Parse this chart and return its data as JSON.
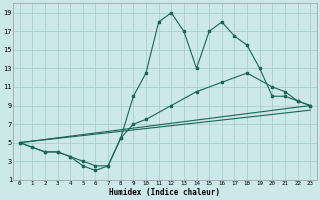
{
  "title": "",
  "xlabel": "Humidex (Indice chaleur)",
  "ylabel": "",
  "bg_color": "#cce8e8",
  "line_color": "#1a6655",
  "grid_color": "#aacece",
  "xlim": [
    -0.5,
    23.5
  ],
  "ylim": [
    1,
    20
  ],
  "xticks": [
    0,
    1,
    2,
    3,
    4,
    5,
    6,
    7,
    8,
    9,
    10,
    11,
    12,
    13,
    14,
    15,
    16,
    17,
    18,
    19,
    20,
    21,
    22,
    23
  ],
  "yticks": [
    1,
    3,
    5,
    7,
    9,
    11,
    13,
    15,
    17,
    19
  ],
  "series": [
    {
      "x": [
        0,
        1,
        2,
        3,
        4,
        5,
        6,
        7,
        8,
        9,
        10,
        11,
        12,
        13,
        14,
        15,
        16,
        17,
        18,
        19,
        20,
        21,
        22,
        23
      ],
      "y": [
        5,
        4.5,
        4,
        4,
        3.5,
        2.5,
        2,
        2.5,
        5.5,
        10,
        12.5,
        18,
        19,
        17,
        13,
        17,
        18,
        16.5,
        15.5,
        13,
        10,
        10,
        9.5,
        9
      ],
      "markers": true
    },
    {
      "x": [
        0,
        2,
        3,
        4,
        5,
        6,
        7,
        8,
        9,
        10,
        12,
        14,
        16,
        18,
        20,
        21,
        22,
        23
      ],
      "y": [
        5,
        4,
        4,
        3.5,
        3,
        2.5,
        2.5,
        5.5,
        7,
        7.5,
        9,
        10.5,
        11.5,
        12.5,
        11,
        10.5,
        9.5,
        9
      ],
      "markers": true
    },
    {
      "x": [
        0,
        23
      ],
      "y": [
        5,
        9
      ],
      "markers": false
    },
    {
      "x": [
        0,
        23
      ],
      "y": [
        5,
        8.5
      ],
      "markers": false
    }
  ]
}
